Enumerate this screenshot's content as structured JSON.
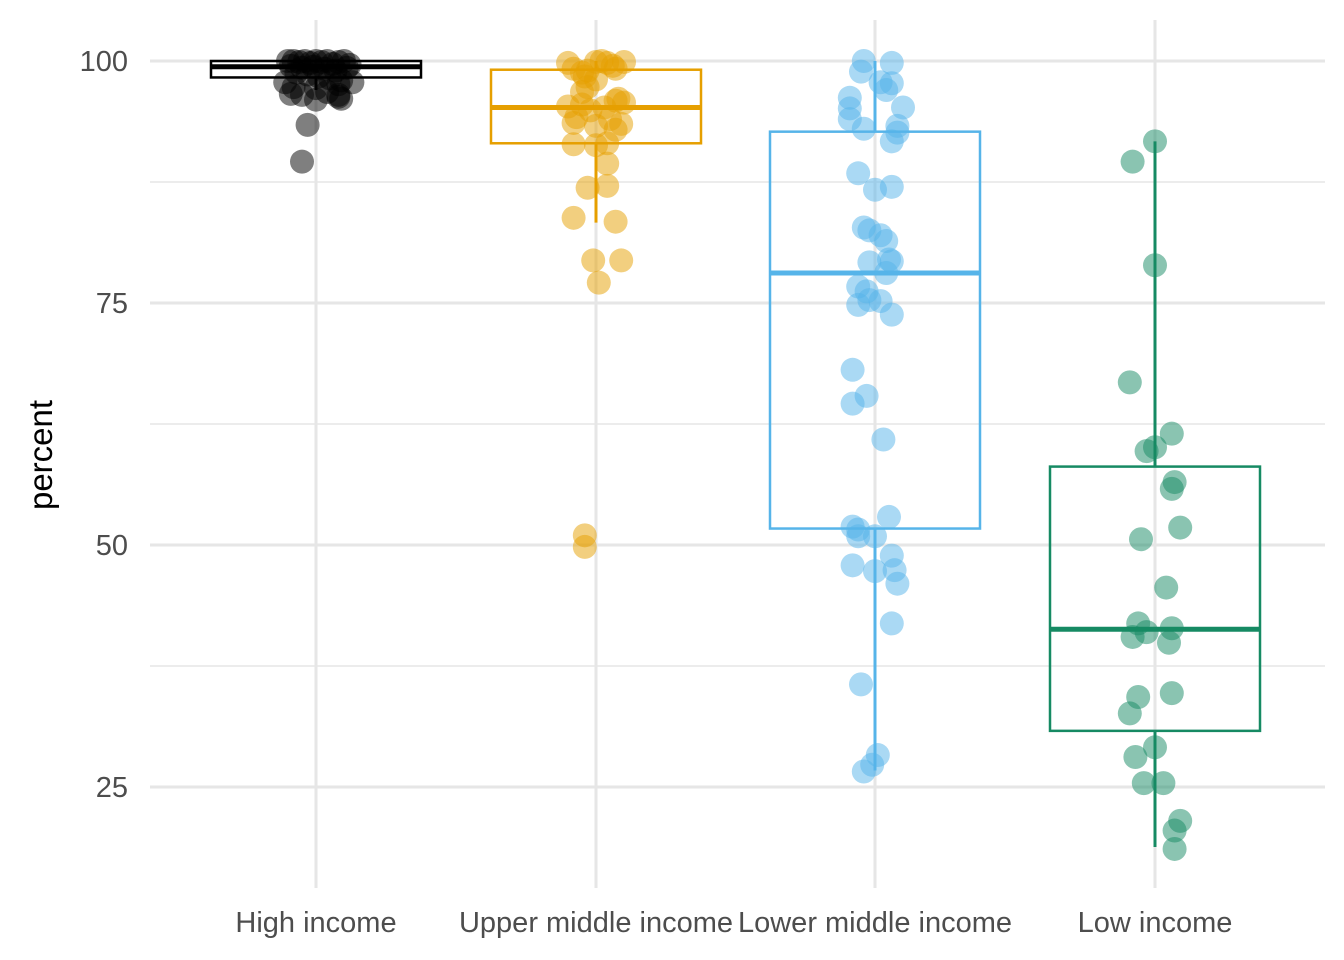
{
  "chart_data": {
    "type": "box",
    "ylabel": "percent",
    "xlabel": "",
    "ylim": [
      15.5,
      104
    ],
    "y_ticks": [
      25,
      50,
      75,
      100
    ],
    "y_minor_ticks": [
      37.5,
      62.5,
      87.5
    ],
    "grid": true,
    "legend": "none",
    "categories": [
      "High income",
      "Upper middle income",
      "Lower middle income",
      "Low income"
    ],
    "series": [
      {
        "category": "High income",
        "color": "#000000",
        "box": {
          "min": 97.0,
          "q1": 98.3,
          "median": 99.4,
          "q3": 100.0,
          "max": 100.0
        },
        "points": [
          [
            -0.1,
            100
          ],
          [
            -0.08,
            100
          ],
          [
            -0.06,
            99.9
          ],
          [
            -0.04,
            100
          ],
          [
            -0.02,
            99.8
          ],
          [
            0.0,
            100
          ],
          [
            0.02,
            99.9
          ],
          [
            0.04,
            100
          ],
          [
            0.06,
            99.7
          ],
          [
            0.08,
            99.9
          ],
          [
            0.1,
            100
          ],
          [
            0.12,
            99.6
          ],
          [
            -0.09,
            99.5
          ],
          [
            -0.05,
            99.3
          ],
          [
            -0.01,
            99.4
          ],
          [
            0.03,
            99.2
          ],
          [
            0.07,
            99.0
          ],
          [
            0.11,
            99.3
          ],
          [
            -0.07,
            98.8
          ],
          [
            -0.03,
            98.6
          ],
          [
            0.01,
            98.4
          ],
          [
            0.05,
            98.2
          ],
          [
            0.09,
            98.0
          ],
          [
            -0.11,
            97.8
          ],
          [
            0.13,
            97.8
          ],
          [
            0.08,
            97.6
          ],
          [
            -0.08,
            97.3
          ],
          [
            0.0,
            97.2
          ],
          [
            0.04,
            96.8
          ],
          [
            -0.09,
            96.6
          ],
          [
            0.08,
            96.3
          ],
          [
            -0.05,
            96.5
          ],
          [
            0.09,
            96.1
          ],
          [
            0.0,
            96.0
          ],
          [
            0.08,
            96.5
          ],
          [
            -0.03,
            93.4
          ],
          [
            -0.05,
            89.6
          ]
        ]
      },
      {
        "category": "Upper middle income",
        "color": "#e69f00",
        "box": {
          "min": 83.3,
          "q1": 91.5,
          "median": 95.2,
          "q3": 99.1,
          "max": 100.0
        },
        "points": [
          [
            -0.1,
            99.8
          ],
          [
            0.0,
            99.9
          ],
          [
            0.02,
            100
          ],
          [
            0.04,
            99.8
          ],
          [
            0.1,
            99.9
          ],
          [
            0.06,
            99.5
          ],
          [
            -0.08,
            99.2
          ],
          [
            -0.03,
            99.0
          ],
          [
            0.07,
            99.2
          ],
          [
            -0.05,
            98.8
          ],
          [
            -0.04,
            98.4
          ],
          [
            0.0,
            98.1
          ],
          [
            -0.03,
            97.3
          ],
          [
            -0.05,
            96.8
          ],
          [
            0.08,
            96.1
          ],
          [
            -0.1,
            95.3
          ],
          [
            -0.05,
            95.5
          ],
          [
            -0.02,
            94.9
          ],
          [
            0.07,
            95.9
          ],
          [
            0.1,
            95.7
          ],
          [
            0.03,
            95.2
          ],
          [
            -0.07,
            94.2
          ],
          [
            0.05,
            94.0
          ],
          [
            -0.08,
            93.6
          ],
          [
            0.0,
            93.3
          ],
          [
            0.07,
            92.9
          ],
          [
            0.09,
            93.5
          ],
          [
            -0.08,
            91.4
          ],
          [
            0.0,
            91.3
          ],
          [
            0.04,
            91.5
          ],
          [
            0.04,
            89.4
          ],
          [
            -0.03,
            86.9
          ],
          [
            0.04,
            87.1
          ],
          [
            -0.08,
            83.8
          ],
          [
            0.07,
            83.4
          ],
          [
            -0.01,
            79.4
          ],
          [
            0.09,
            79.4
          ],
          [
            0.01,
            77.1
          ],
          [
            -0.04,
            51.0
          ],
          [
            -0.04,
            49.8
          ]
        ]
      },
      {
        "category": "Lower middle income",
        "color": "#56b4e9",
        "box": {
          "min": 26.7,
          "q1": 51.7,
          "median": 78.1,
          "q3": 92.7,
          "max": 100.0
        },
        "points": [
          [
            -0.04,
            100
          ],
          [
            0.06,
            99.8
          ],
          [
            -0.05,
            98.9
          ],
          [
            0.06,
            97.7
          ],
          [
            0.04,
            97.0
          ],
          [
            0.02,
            97.8
          ],
          [
            -0.09,
            96.2
          ],
          [
            -0.09,
            95.1
          ],
          [
            0.1,
            95.2
          ],
          [
            -0.09,
            94.0
          ],
          [
            -0.04,
            93.0
          ],
          [
            0.08,
            93.3
          ],
          [
            0.08,
            92.6
          ],
          [
            0.06,
            91.7
          ],
          [
            -0.06,
            88.4
          ],
          [
            0.0,
            86.7
          ],
          [
            0.06,
            87.0
          ],
          [
            -0.04,
            82.8
          ],
          [
            -0.02,
            82.5
          ],
          [
            0.02,
            82.0
          ],
          [
            0.04,
            81.4
          ],
          [
            0.05,
            79.5
          ],
          [
            -0.02,
            79.2
          ],
          [
            0.06,
            79.3
          ],
          [
            0.04,
            78.1
          ],
          [
            -0.06,
            76.7
          ],
          [
            -0.03,
            76.2
          ],
          [
            -0.02,
            75.3
          ],
          [
            0.02,
            75.2
          ],
          [
            -0.06,
            74.8
          ],
          [
            0.06,
            73.8
          ],
          [
            -0.08,
            68.1
          ],
          [
            -0.03,
            65.4
          ],
          [
            -0.08,
            64.6
          ],
          [
            0.03,
            60.9
          ],
          [
            0.05,
            52.9
          ],
          [
            -0.08,
            51.9
          ],
          [
            -0.06,
            51.6
          ],
          [
            -0.06,
            50.9
          ],
          [
            0.0,
            50.9
          ],
          [
            0.06,
            48.9
          ],
          [
            -0.08,
            47.9
          ],
          [
            0.0,
            47.3
          ],
          [
            0.07,
            47.4
          ],
          [
            0.08,
            46.0
          ],
          [
            0.06,
            41.9
          ],
          [
            -0.05,
            35.6
          ],
          [
            0.01,
            28.3
          ],
          [
            -0.01,
            27.3
          ],
          [
            -0.04,
            26.6
          ]
        ]
      },
      {
        "category": "Low income",
        "color": "#168a63",
        "box": {
          "min": 18.8,
          "q1": 30.8,
          "median": 41.3,
          "q3": 58.1,
          "max": 91.7
        },
        "points": [
          [
            0.0,
            91.7
          ],
          [
            -0.08,
            89.6
          ],
          [
            0.0,
            78.9
          ],
          [
            -0.09,
            66.8
          ],
          [
            0.06,
            61.5
          ],
          [
            0.0,
            60.1
          ],
          [
            -0.03,
            59.7
          ],
          [
            0.07,
            56.5
          ],
          [
            0.06,
            55.8
          ],
          [
            0.09,
            51.8
          ],
          [
            -0.05,
            50.6
          ],
          [
            0.04,
            45.6
          ],
          [
            -0.06,
            41.9
          ],
          [
            0.06,
            41.4
          ],
          [
            -0.03,
            41.0
          ],
          [
            -0.08,
            40.5
          ],
          [
            0.05,
            39.9
          ],
          [
            -0.06,
            34.3
          ],
          [
            0.06,
            34.7
          ],
          [
            -0.09,
            32.6
          ],
          [
            0.0,
            29.1
          ],
          [
            -0.07,
            28.1
          ],
          [
            -0.04,
            25.4
          ],
          [
            0.03,
            25.4
          ],
          [
            0.09,
            21.5
          ],
          [
            0.07,
            20.5
          ],
          [
            0.07,
            18.6
          ]
        ]
      }
    ]
  }
}
